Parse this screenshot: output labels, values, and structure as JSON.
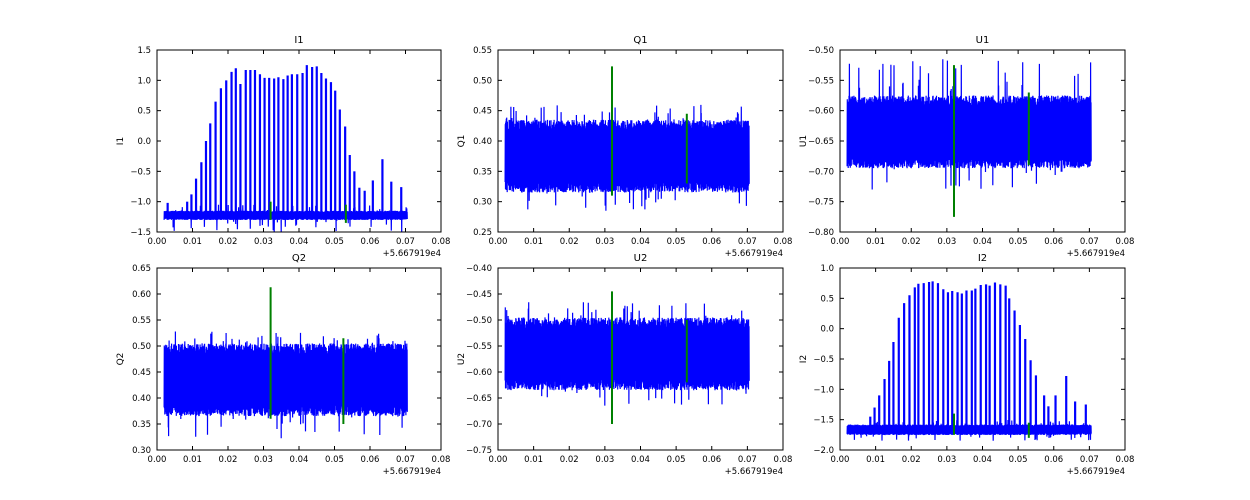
{
  "chart_data": [
    {
      "type": "line",
      "title": "I1",
      "ylabel": "I1",
      "ylim": [
        -1.5,
        1.5
      ],
      "xlim": [
        0,
        0.08
      ],
      "xticks": [
        "0.00",
        "0.01",
        "0.02",
        "0.03",
        "0.04",
        "0.05",
        "0.06",
        "0.07",
        "0.08"
      ],
      "yticks": [
        "1.5",
        "1.0",
        "0.5",
        "0.0",
        "−0.5",
        "−1.0",
        "−1.5"
      ],
      "x_offset": "+5.667919e4",
      "noise_band": {
        "x": [
          0.002,
          0.0705
        ],
        "y": [
          -1.3,
          -1.15
        ],
        "extreme": [
          -1.5,
          -1.05
        ]
      },
      "spikes": [
        [
          0.003,
          -1.02
        ],
        [
          0.0085,
          -1.0
        ],
        [
          0.0097,
          -0.88
        ],
        [
          0.011,
          -0.62
        ],
        [
          0.0125,
          -0.35
        ],
        [
          0.0138,
          0.0
        ],
        [
          0.015,
          0.29
        ],
        [
          0.0165,
          0.65
        ],
        [
          0.018,
          0.87
        ],
        [
          0.0195,
          1.0
        ],
        [
          0.021,
          1.14
        ],
        [
          0.0222,
          1.2
        ],
        [
          0.0235,
          0.94
        ],
        [
          0.025,
          1.17
        ],
        [
          0.0263,
          1.17
        ],
        [
          0.0276,
          1.17
        ],
        [
          0.029,
          1.1
        ],
        [
          0.0303,
          1.04
        ],
        [
          0.0316,
          1.04
        ],
        [
          0.033,
          1.03
        ],
        [
          0.0342,
          1.05
        ],
        [
          0.0356,
          1.02
        ],
        [
          0.0368,
          1.08
        ],
        [
          0.038,
          1.1
        ],
        [
          0.0395,
          1.1
        ],
        [
          0.041,
          1.12
        ],
        [
          0.0422,
          1.25
        ],
        [
          0.0437,
          1.22
        ],
        [
          0.045,
          1.23
        ],
        [
          0.0463,
          1.12
        ],
        [
          0.0476,
          1.03
        ],
        [
          0.049,
          0.97
        ],
        [
          0.0502,
          0.83
        ],
        [
          0.0515,
          0.52
        ],
        [
          0.053,
          0.24
        ],
        [
          0.0543,
          -0.23
        ],
        [
          0.0556,
          -0.5
        ],
        [
          0.057,
          -0.77
        ],
        [
          0.0585,
          -0.82
        ],
        [
          0.0608,
          -0.65
        ],
        [
          0.0635,
          -0.3
        ],
        [
          0.066,
          -0.67
        ],
        [
          0.0688,
          -0.76
        ]
      ],
      "green": [
        [
          0.032,
          -1.3,
          -1.0
        ],
        [
          0.0532,
          -1.35,
          -1.05
        ]
      ]
    },
    {
      "type": "line",
      "title": "Q1",
      "ylabel": "Q1",
      "ylim": [
        0.25,
        0.55
      ],
      "xlim": [
        0,
        0.08
      ],
      "xticks": [
        "0.00",
        "0.01",
        "0.02",
        "0.03",
        "0.04",
        "0.05",
        "0.06",
        "0.07",
        "0.08"
      ],
      "yticks": [
        "0.55",
        "0.50",
        "0.45",
        "0.40",
        "0.35",
        "0.30",
        "0.25"
      ],
      "x_offset": "+5.667919e4",
      "noise_band": {
        "x": [
          0.002,
          0.0705
        ],
        "y": [
          0.315,
          0.435
        ],
        "extreme": [
          0.285,
          0.46
        ]
      },
      "spikes": [],
      "green": [
        [
          0.032,
          0.31,
          0.523
        ],
        [
          0.053,
          0.33,
          0.445
        ]
      ]
    },
    {
      "type": "line",
      "title": "U1",
      "ylabel": "U1",
      "ylim": [
        -0.8,
        -0.5
      ],
      "xlim": [
        0,
        0.08
      ],
      "xticks": [
        "0.00",
        "0.01",
        "0.02",
        "0.03",
        "0.04",
        "0.05",
        "0.06",
        "0.07",
        "0.08"
      ],
      "yticks": [
        "−0.50",
        "−0.55",
        "−0.60",
        "−0.65",
        "−0.70",
        "−0.75",
        "−0.80"
      ],
      "x_offset": "+5.667919e4",
      "noise_band": {
        "x": [
          0.002,
          0.0705
        ],
        "y": [
          -0.695,
          -0.575
        ],
        "extreme": [
          -0.73,
          -0.515
        ]
      },
      "spikes": [],
      "green": [
        [
          0.032,
          -0.775,
          -0.525
        ],
        [
          0.053,
          -0.69,
          -0.57
        ]
      ]
    },
    {
      "type": "line",
      "title": "Q2",
      "ylabel": "Q2",
      "ylim": [
        0.3,
        0.65
      ],
      "xlim": [
        0,
        0.08
      ],
      "xticks": [
        "0.00",
        "0.01",
        "0.02",
        "0.03",
        "0.04",
        "0.05",
        "0.06",
        "0.07",
        "0.08"
      ],
      "yticks": [
        "0.65",
        "0.60",
        "0.55",
        "0.50",
        "0.45",
        "0.40",
        "0.35",
        "0.30"
      ],
      "x_offset": "+5.667919e4",
      "noise_band": {
        "x": [
          0.002,
          0.0705
        ],
        "y": [
          0.365,
          0.505
        ],
        "extreme": [
          0.32,
          0.53
        ]
      },
      "spikes": [],
      "green": [
        [
          0.032,
          0.36,
          0.613
        ],
        [
          0.0525,
          0.35,
          0.515
        ]
      ]
    },
    {
      "type": "line",
      "title": "U2",
      "ylabel": "U2",
      "ylim": [
        -0.75,
        -0.4
      ],
      "xlim": [
        0,
        0.08
      ],
      "xticks": [
        "0.00",
        "0.01",
        "0.02",
        "0.03",
        "0.04",
        "0.05",
        "0.06",
        "0.07",
        "0.08"
      ],
      "yticks": [
        "−0.40",
        "−0.45",
        "−0.50",
        "−0.55",
        "−0.60",
        "−0.65",
        "−0.70",
        "−0.75"
      ],
      "x_offset": "+5.667919e4",
      "noise_band": {
        "x": [
          0.002,
          0.0705
        ],
        "y": [
          -0.635,
          -0.495
        ],
        "extreme": [
          -0.665,
          -0.465
        ]
      },
      "spikes": [],
      "green": [
        [
          0.032,
          -0.7,
          -0.445
        ],
        [
          0.053,
          -0.62,
          -0.5
        ]
      ]
    },
    {
      "type": "line",
      "title": "I2",
      "ylabel": "I2",
      "ylim": [
        -2.0,
        1.0
      ],
      "xlim": [
        0,
        0.08
      ],
      "xticks": [
        "0.00",
        "0.01",
        "0.02",
        "0.03",
        "0.04",
        "0.05",
        "0.06",
        "0.07",
        "0.08"
      ],
      "yticks": [
        "1.0",
        "0.5",
        "0.0",
        "−0.5",
        "−1.0",
        "−1.5",
        "−2.0"
      ],
      "x_offset": "+5.667919e4",
      "noise_band": {
        "x": [
          0.002,
          0.0705
        ],
        "y": [
          -1.75,
          -1.58
        ],
        "extreme": [
          -1.85,
          -1.5
        ]
      },
      "spikes": [
        [
          0.0085,
          -1.45
        ],
        [
          0.0097,
          -1.3
        ],
        [
          0.011,
          -1.1
        ],
        [
          0.0125,
          -0.83
        ],
        [
          0.0138,
          -0.53
        ],
        [
          0.015,
          -0.22
        ],
        [
          0.0165,
          0.18
        ],
        [
          0.018,
          0.42
        ],
        [
          0.0195,
          0.55
        ],
        [
          0.021,
          0.68
        ],
        [
          0.022,
          0.74
        ],
        [
          0.0235,
          0.75
        ],
        [
          0.025,
          0.77
        ],
        [
          0.026,
          0.78
        ],
        [
          0.0275,
          0.75
        ],
        [
          0.029,
          0.65
        ],
        [
          0.0303,
          0.6
        ],
        [
          0.0315,
          0.62
        ],
        [
          0.033,
          0.6
        ],
        [
          0.0342,
          0.58
        ],
        [
          0.0355,
          0.63
        ],
        [
          0.037,
          0.63
        ],
        [
          0.038,
          0.66
        ],
        [
          0.0395,
          0.72
        ],
        [
          0.041,
          0.73
        ],
        [
          0.042,
          0.71
        ],
        [
          0.0435,
          0.76
        ],
        [
          0.045,
          0.73
        ],
        [
          0.0465,
          0.71
        ],
        [
          0.0475,
          0.5
        ],
        [
          0.049,
          0.3
        ],
        [
          0.0505,
          0.06
        ],
        [
          0.052,
          -0.17
        ],
        [
          0.0535,
          -0.52
        ],
        [
          0.055,
          -0.77
        ],
        [
          0.0573,
          -1.1
        ],
        [
          0.0585,
          -1.28
        ],
        [
          0.0605,
          -1.1
        ],
        [
          0.0635,
          -0.78
        ],
        [
          0.066,
          -1.2
        ],
        [
          0.069,
          -1.25
        ]
      ],
      "green": [
        [
          0.032,
          -1.75,
          -1.4
        ],
        [
          0.053,
          -1.8,
          -1.55
        ]
      ]
    }
  ],
  "colors": {
    "series": "#0000ff",
    "marker": "#008000",
    "axes": "#000000"
  }
}
